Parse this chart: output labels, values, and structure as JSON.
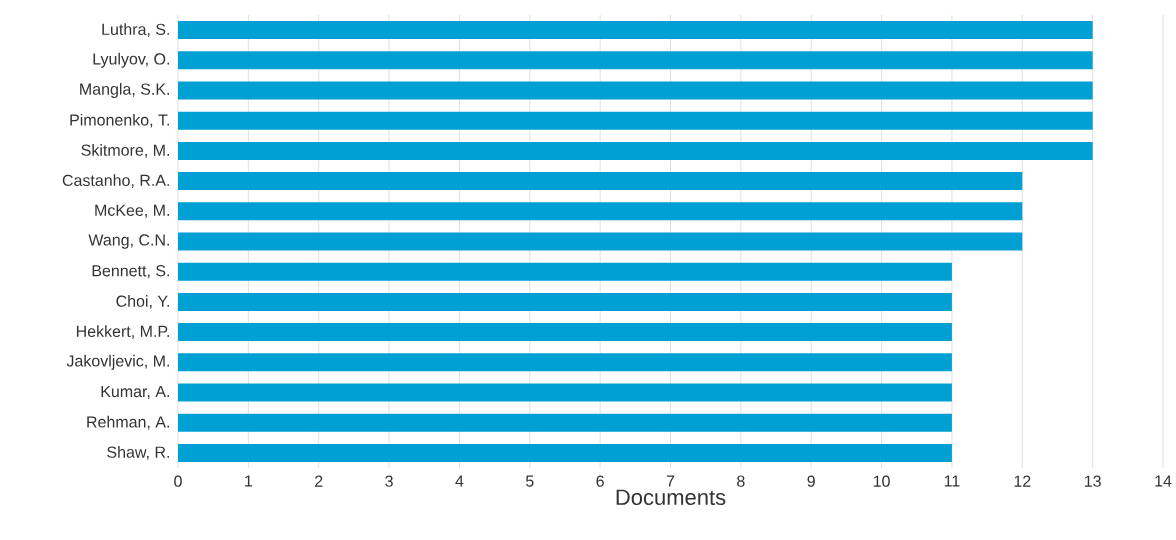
{
  "chart_data": {
    "type": "bar",
    "orientation": "horizontal",
    "categories": [
      "Luthra, S.",
      "Lyulyov, O.",
      "Mangla, S.K.",
      "Pimonenko, T.",
      "Skitmore, M.",
      "Castanho, R.A.",
      "McKee, M.",
      "Wang, C.N.",
      "Bennett, S.",
      "Choi, Y.",
      "Hekkert, M.P.",
      "Jakovljevic, M.",
      "Kumar, A.",
      "Rehman, A.",
      "Shaw, R."
    ],
    "values": [
      13,
      13,
      13,
      13,
      13,
      12,
      12,
      12,
      11,
      11,
      11,
      11,
      11,
      11,
      11
    ],
    "color": "#009fd4",
    "xlabel": "Documents",
    "xlim": [
      0,
      14
    ],
    "xticks": [
      0,
      1,
      2,
      3,
      4,
      5,
      6,
      7,
      8,
      9,
      10,
      11,
      12,
      13,
      14
    ],
    "grid": "x"
  }
}
